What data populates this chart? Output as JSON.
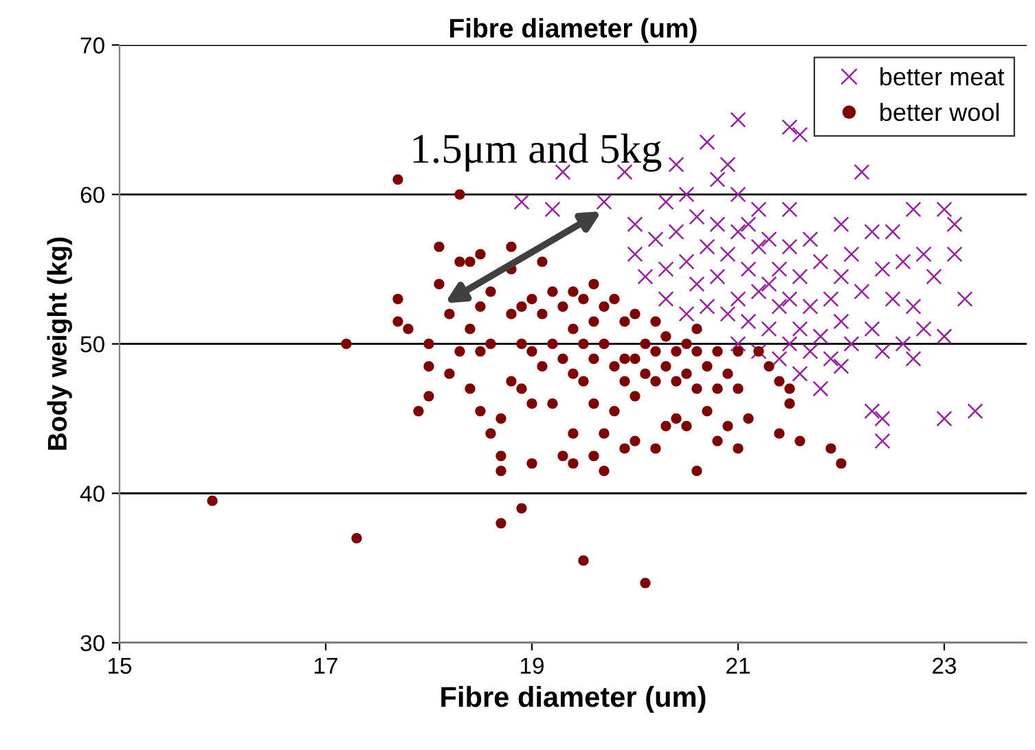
{
  "chart_data": {
    "type": "scatter",
    "title": "Fibre diameter (um)",
    "xlabel": "Fibre diameter (um)",
    "ylabel": "Body weight (kg)",
    "xlim": [
      15,
      23.8
    ],
    "xticks": [
      15,
      17,
      19,
      21,
      23
    ],
    "ylim": [
      30,
      70
    ],
    "yticks": [
      30,
      40,
      50,
      60,
      70
    ],
    "grid": "y",
    "legend": "top right",
    "annotations": [
      "1.5μm and 5kg"
    ],
    "series": [
      {
        "name": "better meat",
        "color": "#9b1fa6",
        "marker": "cross",
        "x": [
          18.9,
          19.2,
          19.3,
          19.7,
          19.9,
          20.0,
          20.0,
          20.1,
          20.2,
          20.3,
          20.3,
          20.3,
          20.4,
          20.4,
          20.5,
          20.5,
          20.5,
          20.6,
          20.6,
          20.7,
          20.7,
          20.7,
          20.8,
          20.8,
          20.8,
          20.9,
          20.9,
          20.9,
          21.0,
          21.0,
          21.0,
          21.0,
          21.0,
          21.1,
          21.1,
          21.1,
          21.2,
          21.2,
          21.2,
          21.2,
          21.3,
          21.3,
          21.3,
          21.4,
          21.4,
          21.4,
          21.5,
          21.5,
          21.5,
          21.5,
          21.6,
          21.6,
          21.6,
          21.6,
          21.7,
          21.7,
          21.7,
          21.8,
          21.8,
          21.8,
          21.9,
          21.9,
          22.0,
          22.0,
          22.0,
          22.0,
          22.1,
          22.1,
          22.2,
          22.2,
          22.3,
          22.3,
          22.3,
          22.4,
          22.4,
          22.4,
          22.4,
          22.5,
          22.5,
          22.6,
          22.6,
          22.7,
          22.7,
          22.7,
          22.8,
          22.8,
          22.9,
          23.0,
          23.0,
          23.0,
          23.1,
          23.1,
          23.2,
          23.3,
          21.5
        ],
        "values": [
          59.5,
          59,
          61.5,
          59.5,
          61.5,
          58,
          56,
          54.5,
          57,
          59.5,
          55,
          53,
          62,
          57.5,
          60,
          55.5,
          52,
          58.5,
          54,
          63.5,
          56.5,
          52.5,
          61,
          58,
          54.5,
          62,
          56,
          52,
          65,
          60,
          57.5,
          53,
          50,
          58,
          55,
          51.5,
          59,
          56.5,
          53.5,
          49.5,
          57,
          54,
          51,
          55,
          52.5,
          49,
          59,
          56.5,
          53,
          50,
          64,
          54.5,
          51,
          48,
          57,
          52.5,
          49.5,
          55.5,
          50.5,
          47,
          53,
          49,
          58,
          54.5,
          51.5,
          48.5,
          56,
          50,
          61.5,
          53.5,
          57.5,
          51,
          45.5,
          55,
          49.5,
          43.5,
          45,
          57.5,
          53,
          55.5,
          50,
          59,
          52.5,
          49,
          56,
          51,
          54.5,
          59,
          50.5,
          45,
          58,
          56,
          53,
          45.5,
          64.5
        ]
      },
      {
        "name": "better wool",
        "color": "#800000",
        "marker": "circle",
        "x": [
          15.9,
          17.3,
          17.2,
          17.7,
          17.7,
          17.7,
          17.8,
          17.9,
          18.0,
          18.0,
          18.0,
          18.1,
          18.1,
          18.2,
          18.2,
          18.3,
          18.3,
          18.3,
          18.4,
          18.4,
          18.4,
          18.5,
          18.5,
          18.5,
          18.5,
          18.6,
          18.6,
          18.6,
          18.7,
          18.7,
          18.7,
          18.7,
          18.8,
          18.8,
          18.8,
          18.8,
          18.9,
          18.9,
          18.9,
          18.9,
          19.0,
          19.0,
          19.0,
          19.0,
          19.1,
          19.1,
          19.1,
          19.2,
          19.2,
          19.2,
          19.3,
          19.3,
          19.3,
          19.4,
          19.4,
          19.4,
          19.4,
          19.4,
          19.5,
          19.5,
          19.5,
          19.5,
          19.6,
          19.6,
          19.6,
          19.6,
          19.6,
          19.7,
          19.7,
          19.7,
          19.7,
          19.8,
          19.8,
          19.8,
          19.9,
          19.9,
          19.9,
          19.9,
          20.0,
          20.0,
          20.0,
          20.0,
          20.1,
          20.1,
          20.1,
          20.2,
          20.2,
          20.2,
          20.2,
          20.3,
          20.3,
          20.3,
          20.4,
          20.4,
          20.4,
          20.5,
          20.5,
          20.5,
          20.6,
          20.6,
          20.6,
          20.6,
          20.7,
          20.7,
          20.8,
          20.8,
          20.8,
          20.9,
          20.9,
          21.0,
          21.0,
          21.0,
          21.1,
          21.2,
          21.3,
          21.4,
          21.4,
          21.5,
          21.5,
          21.6,
          21.9,
          22.0
        ],
        "values": [
          39.5,
          37,
          50,
          61,
          53,
          51.5,
          51,
          45.5,
          50,
          48.5,
          46.5,
          56.5,
          54,
          52,
          48,
          55.5,
          49.5,
          60,
          55.5,
          51,
          47,
          56,
          52.5,
          49.5,
          45.5,
          53.5,
          50,
          44,
          42.5,
          41.5,
          38,
          45,
          56.5,
          55,
          52,
          47.5,
          52.5,
          50,
          47,
          39,
          53,
          49.5,
          46,
          42,
          55.5,
          52,
          48.5,
          53.5,
          50,
          46,
          52.5,
          49,
          42.5,
          53.5,
          51,
          48,
          44,
          42,
          53,
          50,
          47.5,
          35.5,
          54,
          51.5,
          49,
          46,
          42.5,
          52.5,
          50,
          44,
          41.5,
          53,
          48.5,
          45.5,
          51.5,
          49,
          47.5,
          43,
          52,
          49,
          46.5,
          43.5,
          50,
          48,
          34,
          51.5,
          49.5,
          47.5,
          43,
          50.5,
          48.5,
          44.5,
          49.5,
          47.5,
          45,
          50,
          48,
          44.5,
          51,
          49.5,
          47,
          41.5,
          48.5,
          45.5,
          49.5,
          47,
          43.5,
          48,
          44.5,
          49.5,
          47,
          43,
          45,
          49.5,
          48.5,
          47.5,
          44,
          47,
          46,
          43.5,
          43,
          42
        ]
      }
    ]
  }
}
